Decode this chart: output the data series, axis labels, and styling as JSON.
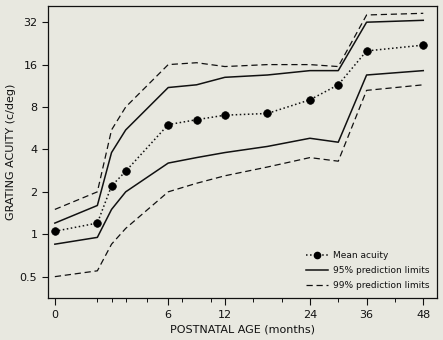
{
  "x_display": [
    0,
    6,
    8,
    10,
    16,
    20,
    24,
    30,
    36,
    40,
    44,
    52
  ],
  "mean_acuity": [
    1.05,
    1.2,
    2.2,
    2.8,
    6.0,
    6.5,
    7.0,
    7.2,
    9.0,
    11.5,
    20.0,
    22.0
  ],
  "upper_95": [
    1.2,
    1.6,
    3.8,
    5.5,
    11.0,
    11.5,
    13.0,
    13.5,
    14.5,
    14.5,
    32.0,
    33.0
  ],
  "lower_95": [
    0.85,
    0.95,
    1.5,
    2.0,
    3.2,
    3.5,
    3.8,
    4.2,
    4.8,
    4.5,
    13.5,
    14.5
  ],
  "upper_99": [
    1.5,
    2.0,
    5.5,
    8.0,
    16.0,
    16.5,
    15.5,
    16.0,
    16.0,
    15.5,
    36.0,
    37.0
  ],
  "lower_99": [
    0.5,
    0.55,
    0.85,
    1.1,
    2.0,
    2.3,
    2.6,
    3.0,
    3.5,
    3.3,
    10.5,
    11.5
  ],
  "xtick_labels": [
    "0",
    "6",
    "12",
    "24",
    "36",
    "48"
  ],
  "xtick_display": [
    0,
    16,
    24,
    36,
    44,
    52
  ],
  "minor_xtick_display": [
    6,
    8,
    10,
    13,
    18,
    22,
    28,
    32,
    40,
    48
  ],
  "xlabel": "POSTNATAL AGE (months)",
  "ylabel": "GRATING ACUITY (c/deg)",
  "yticks": [
    0.5,
    1,
    2,
    4,
    8,
    16,
    32
  ],
  "xlim": [
    -1,
    54
  ],
  "ymin": 0.35,
  "ymax": 42.0,
  "legend_labels": [
    "Mean acuity",
    "95% prediction limits",
    "99% prediction limits"
  ],
  "background_color": "#e8e8e0",
  "line_color": "#111111"
}
